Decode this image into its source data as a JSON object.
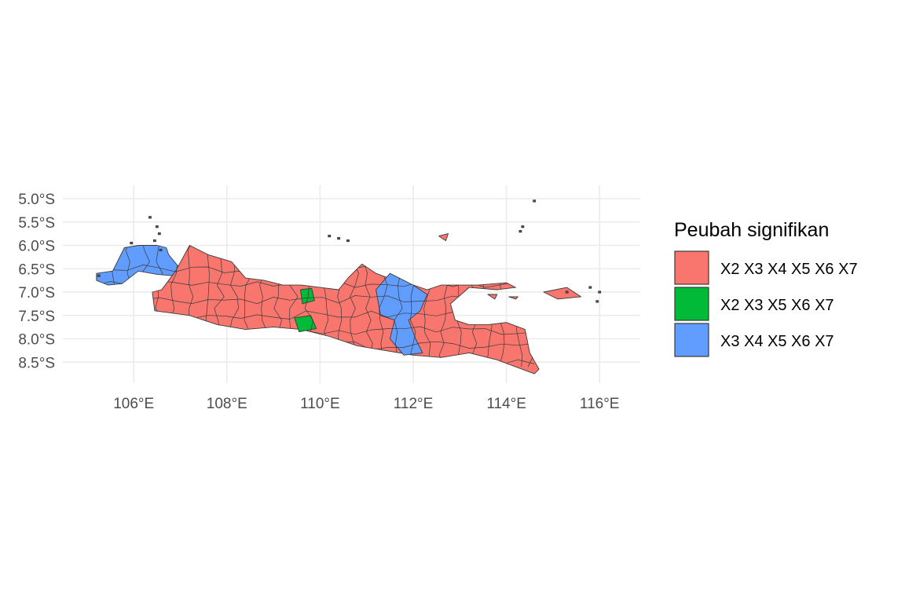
{
  "chart_data": {
    "type": "map",
    "title": "",
    "xlabel": "",
    "ylabel": "",
    "xlim": [
      104.8,
      116.9
    ],
    "ylim": [
      -8.95,
      -4.85
    ],
    "x_ticks": [
      106,
      108,
      110,
      112,
      114,
      116
    ],
    "x_tick_labels": [
      "106°E",
      "108°E",
      "110°E",
      "112°E",
      "114°E",
      "116°E"
    ],
    "y_ticks": [
      -5.0,
      -5.5,
      -6.0,
      -6.5,
      -7.0,
      -7.5,
      -8.0,
      -8.5
    ],
    "y_tick_labels": [
      "5.0°S",
      "5.5°S",
      "6.0°S",
      "6.5°S",
      "7.0°S",
      "7.5°S",
      "8.0°S",
      "8.5°S"
    ],
    "grid": true,
    "legend": {
      "title": "Peubah signifikan",
      "position": "right",
      "entries": [
        {
          "label": "X2 X3 X4 X5 X6 X7",
          "color": "#F8766D"
        },
        {
          "label": "X2 X3 X5 X6 X7",
          "color": "#00BA38"
        },
        {
          "label": "X3 X4 X5 X6 X7",
          "color": "#619CFF"
        }
      ]
    },
    "regions": [
      {
        "category": "X3 X4 X5 X6 X7",
        "color": "#619CFF",
        "outline": [
          [
            105.2,
            -6.75
          ],
          [
            105.45,
            -6.85
          ],
          [
            105.75,
            -6.82
          ],
          [
            106.1,
            -6.55
          ],
          [
            106.5,
            -6.62
          ],
          [
            106.85,
            -6.65
          ],
          [
            107.0,
            -6.5
          ],
          [
            106.75,
            -6.2
          ],
          [
            106.7,
            -6.05
          ],
          [
            106.5,
            -6.0
          ],
          [
            106.1,
            -6.0
          ],
          [
            105.8,
            -6.05
          ],
          [
            105.55,
            -6.55
          ],
          [
            105.2,
            -6.6
          ]
        ]
      },
      {
        "category": "X2 X3 X4 X5 X6 X7",
        "color": "#F8766D",
        "outline": [
          [
            106.4,
            -7.0
          ],
          [
            106.45,
            -7.4
          ],
          [
            107.2,
            -7.5
          ],
          [
            107.8,
            -7.7
          ],
          [
            108.4,
            -7.8
          ],
          [
            109.0,
            -7.75
          ],
          [
            109.6,
            -7.8
          ],
          [
            110.2,
            -7.95
          ],
          [
            110.8,
            -8.15
          ],
          [
            111.4,
            -8.25
          ],
          [
            112.0,
            -8.35
          ],
          [
            112.6,
            -8.4
          ],
          [
            113.2,
            -8.3
          ],
          [
            113.8,
            -8.45
          ],
          [
            114.2,
            -8.6
          ],
          [
            114.6,
            -8.75
          ],
          [
            114.7,
            -8.65
          ],
          [
            114.5,
            -8.3
          ],
          [
            114.4,
            -7.8
          ],
          [
            114.0,
            -7.65
          ],
          [
            113.6,
            -7.7
          ],
          [
            113.2,
            -7.7
          ],
          [
            112.9,
            -7.6
          ],
          [
            112.8,
            -7.25
          ],
          [
            113.2,
            -6.9
          ],
          [
            113.8,
            -6.95
          ],
          [
            114.2,
            -6.9
          ],
          [
            114.0,
            -6.8
          ],
          [
            113.4,
            -6.85
          ],
          [
            112.6,
            -6.85
          ],
          [
            112.3,
            -6.95
          ],
          [
            112.0,
            -6.85
          ],
          [
            111.6,
            -6.75
          ],
          [
            111.2,
            -6.6
          ],
          [
            110.9,
            -6.4
          ],
          [
            110.6,
            -6.7
          ],
          [
            110.4,
            -6.95
          ],
          [
            110.0,
            -6.9
          ],
          [
            109.6,
            -6.85
          ],
          [
            109.2,
            -6.85
          ],
          [
            108.8,
            -6.75
          ],
          [
            108.4,
            -6.7
          ],
          [
            108.1,
            -6.35
          ],
          [
            107.6,
            -6.2
          ],
          [
            107.2,
            -6.0
          ],
          [
            106.9,
            -6.55
          ],
          [
            106.6,
            -6.95
          ]
        ]
      },
      {
        "category": "X2 X3 X5 X6 X7",
        "color": "#00BA38",
        "outline": [
          [
            109.58,
            -6.95
          ],
          [
            109.82,
            -6.92
          ],
          [
            109.88,
            -7.18
          ],
          [
            109.62,
            -7.25
          ]
        ]
      },
      {
        "category": "X2 X3 X5 X6 X7",
        "color": "#00BA38",
        "outline": [
          [
            109.45,
            -7.55
          ],
          [
            109.8,
            -7.5
          ],
          [
            109.92,
            -7.78
          ],
          [
            109.55,
            -7.85
          ]
        ]
      },
      {
        "category": "X3 X4 X5 X6 X7",
        "color": "#619CFF",
        "outline": [
          [
            111.2,
            -6.95
          ],
          [
            111.5,
            -6.6
          ],
          [
            112.0,
            -6.85
          ],
          [
            112.3,
            -7.05
          ],
          [
            112.15,
            -7.4
          ],
          [
            111.9,
            -7.6
          ],
          [
            112.05,
            -8.0
          ],
          [
            112.2,
            -8.3
          ],
          [
            111.8,
            -8.35
          ],
          [
            111.5,
            -8.0
          ],
          [
            111.6,
            -7.6
          ],
          [
            111.3,
            -7.5
          ]
        ]
      }
    ],
    "islands": [
      [
        [
          114.8,
          -7.0
        ],
        [
          115.3,
          -6.9
        ],
        [
          115.6,
          -7.1
        ],
        [
          115.1,
          -7.15
        ]
      ],
      [
        [
          112.55,
          -5.8
        ],
        [
          112.75,
          -5.75
        ],
        [
          112.7,
          -5.9
        ]
      ],
      [
        [
          113.6,
          -7.05
        ],
        [
          113.8,
          -7.05
        ],
        [
          113.75,
          -7.15
        ]
      ],
      [
        [
          114.05,
          -7.1
        ],
        [
          114.25,
          -7.1
        ],
        [
          114.2,
          -7.15
        ]
      ]
    ],
    "islets": [
      [
        106.45,
        -5.9
      ],
      [
        106.5,
        -5.6
      ],
      [
        106.55,
        -5.75
      ],
      [
        106.35,
        -5.4
      ],
      [
        106.58,
        -6.1
      ],
      [
        105.95,
        -5.95
      ],
      [
        105.25,
        -6.65
      ],
      [
        110.2,
        -5.8
      ],
      [
        110.4,
        -5.85
      ],
      [
        110.6,
        -5.9
      ],
      [
        114.6,
        -5.05
      ],
      [
        114.35,
        -5.6
      ],
      [
        114.3,
        -5.7
      ],
      [
        115.8,
        -6.9
      ],
      [
        116.0,
        -7.0
      ],
      [
        115.3,
        -7.0
      ],
      [
        115.95,
        -7.2
      ]
    ]
  }
}
